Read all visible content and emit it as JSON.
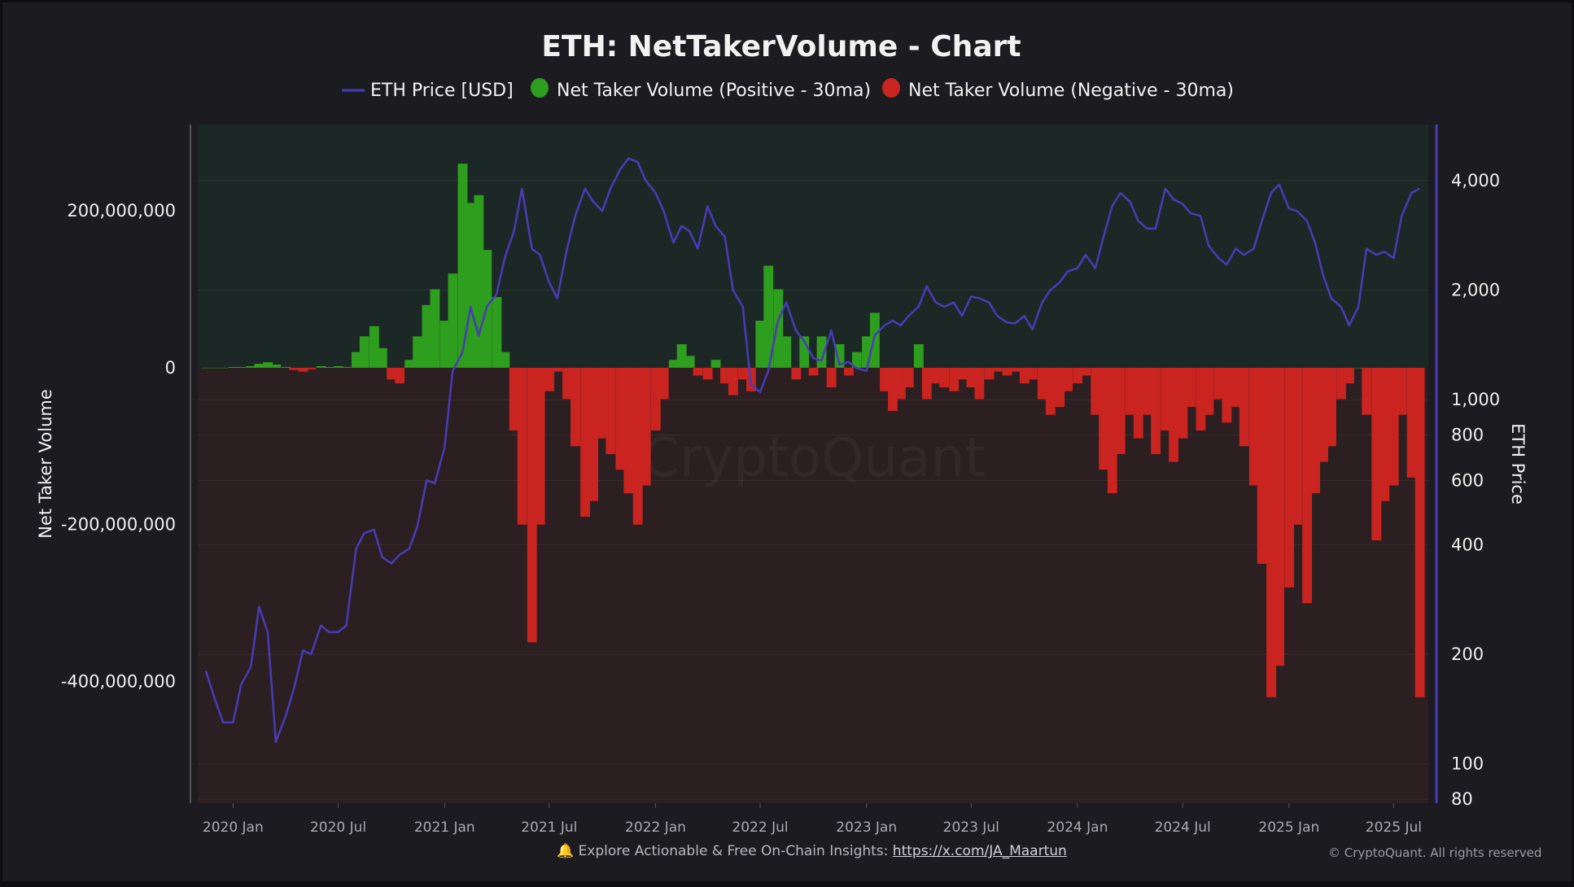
{
  "chart_data": {
    "type": "bar",
    "title": "ETH: NetTakerVolume - Chart",
    "legend": {
      "placement": "top-center",
      "entries": [
        {
          "label": "ETH Price [USD]",
          "color": "#4a3bb8",
          "marker": "line"
        },
        {
          "label": "Net Taker Volume (Positive - 30ma)",
          "color": "#2e9e1e",
          "marker": "circle"
        },
        {
          "label": "Net Taker Volume (Negative - 30ma)",
          "color": "#c9241f",
          "marker": "circle"
        }
      ]
    },
    "ylabel": "Net Taker Volume",
    "y2label": "ETH Price",
    "ylim": [
      -555000000,
      310000000
    ],
    "y2lim": [
      78,
      5700
    ],
    "y2scale": "log",
    "xlim": [
      "2019-11-01",
      "2025-08-30"
    ],
    "yticks": [
      "200,000,000",
      "0",
      "-200,000,000",
      "-400,000,000"
    ],
    "ytick_values": [
      200000000,
      0,
      -200000000,
      -400000000
    ],
    "y2ticks": [
      "4,000",
      "2,000",
      "1,000",
      "800",
      "600",
      "400",
      "200",
      "100",
      "80"
    ],
    "y2tick_values": [
      4000,
      2000,
      1000,
      800,
      600,
      400,
      200,
      100,
      80
    ],
    "xticks": [
      "2020 Jan",
      "2020 Jul",
      "2021 Jan",
      "2021 Jul",
      "2022 Jan",
      "2022 Jul",
      "2023 Jan",
      "2023 Jul",
      "2024 Jan",
      "2024 Jul",
      "2025 Jan",
      "2025 Jul"
    ],
    "xtick_values": [
      "2020-01-01",
      "2020-07-01",
      "2021-01-01",
      "2021-07-01",
      "2022-01-01",
      "2022-07-01",
      "2023-01-01",
      "2023-07-01",
      "2024-01-01",
      "2024-07-01",
      "2025-01-01",
      "2025-07-01"
    ],
    "grid": true,
    "watermark": "CryptoQuant",
    "colors": {
      "positive": "#2e9e1e",
      "negative": "#c9241f",
      "price": "#4a3bb8",
      "pos_bg": "#1c2825",
      "neg_bg": "#2b1f21"
    },
    "x": [
      "2019-11-15",
      "2019-12-01",
      "2019-12-15",
      "2020-01-01",
      "2020-01-15",
      "2020-02-01",
      "2020-02-15",
      "2020-03-01",
      "2020-03-15",
      "2020-04-01",
      "2020-04-15",
      "2020-05-01",
      "2020-05-15",
      "2020-06-01",
      "2020-06-15",
      "2020-07-01",
      "2020-07-15",
      "2020-08-01",
      "2020-08-15",
      "2020-09-01",
      "2020-09-15",
      "2020-10-01",
      "2020-10-15",
      "2020-11-01",
      "2020-11-15",
      "2020-12-01",
      "2020-12-15",
      "2021-01-01",
      "2021-01-15",
      "2021-02-01",
      "2021-02-15",
      "2021-03-01",
      "2021-03-15",
      "2021-04-01",
      "2021-04-15",
      "2021-05-01",
      "2021-05-15",
      "2021-06-01",
      "2021-06-15",
      "2021-07-01",
      "2021-07-15",
      "2021-08-01",
      "2021-08-15",
      "2021-09-01",
      "2021-09-15",
      "2021-10-01",
      "2021-10-15",
      "2021-11-01",
      "2021-11-15",
      "2021-12-01",
      "2021-12-15",
      "2022-01-01",
      "2022-01-15",
      "2022-02-01",
      "2022-02-15",
      "2022-03-01",
      "2022-03-15",
      "2022-04-01",
      "2022-04-15",
      "2022-05-01",
      "2022-05-15",
      "2022-06-01",
      "2022-06-15",
      "2022-07-01",
      "2022-07-15",
      "2022-08-01",
      "2022-08-15",
      "2022-09-01",
      "2022-09-15",
      "2022-10-01",
      "2022-10-15",
      "2022-11-01",
      "2022-11-15",
      "2022-12-01",
      "2022-12-15",
      "2023-01-01",
      "2023-01-15",
      "2023-02-01",
      "2023-02-15",
      "2023-03-01",
      "2023-03-15",
      "2023-04-01",
      "2023-04-15",
      "2023-05-01",
      "2023-05-15",
      "2023-06-01",
      "2023-06-15",
      "2023-07-01",
      "2023-07-15",
      "2023-08-01",
      "2023-08-15",
      "2023-09-01",
      "2023-09-15",
      "2023-10-01",
      "2023-10-15",
      "2023-11-01",
      "2023-11-15",
      "2023-12-01",
      "2023-12-15",
      "2024-01-01",
      "2024-01-15",
      "2024-02-01",
      "2024-02-15",
      "2024-03-01",
      "2024-03-15",
      "2024-04-01",
      "2024-04-15",
      "2024-05-01",
      "2024-05-15",
      "2024-06-01",
      "2024-06-15",
      "2024-07-01",
      "2024-07-15",
      "2024-08-01",
      "2024-08-15",
      "2024-09-01",
      "2024-09-15",
      "2024-10-01",
      "2024-10-15",
      "2024-11-01",
      "2024-11-15",
      "2024-12-01",
      "2024-12-15",
      "2025-01-01",
      "2025-01-15",
      "2025-02-01",
      "2025-02-15",
      "2025-03-01",
      "2025-03-15",
      "2025-04-01",
      "2025-04-15",
      "2025-05-01",
      "2025-05-15",
      "2025-06-01",
      "2025-06-15",
      "2025-07-01",
      "2025-07-15",
      "2025-08-01",
      "2025-08-15"
    ],
    "series": [
      {
        "name": "ETH Price [USD]",
        "axis": "right",
        "kind": "line",
        "values": [
          180,
          150,
          130,
          130,
          165,
          185,
          270,
          230,
          115,
          135,
          160,
          205,
          200,
          240,
          230,
          230,
          240,
          390,
          430,
          440,
          370,
          355,
          375,
          390,
          450,
          600,
          590,
          740,
          1200,
          1350,
          1800,
          1500,
          1800,
          1950,
          2450,
          2900,
          3800,
          2600,
          2500,
          2100,
          1900,
          2600,
          3200,
          3800,
          3500,
          3300,
          3800,
          4300,
          4600,
          4500,
          4000,
          3700,
          3300,
          2700,
          3000,
          2900,
          2600,
          3400,
          3000,
          2800,
          2000,
          1800,
          1100,
          1050,
          1200,
          1650,
          1850,
          1550,
          1450,
          1300,
          1280,
          1550,
          1250,
          1270,
          1220,
          1200,
          1500,
          1600,
          1650,
          1600,
          1700,
          1800,
          2050,
          1850,
          1800,
          1850,
          1700,
          1920,
          1900,
          1850,
          1700,
          1630,
          1620,
          1700,
          1560,
          1850,
          2000,
          2100,
          2250,
          2300,
          2500,
          2300,
          2800,
          3400,
          3700,
          3500,
          3100,
          2950,
          2950,
          3800,
          3550,
          3450,
          3250,
          3200,
          2650,
          2450,
          2350,
          2600,
          2500,
          2600,
          3100,
          3700,
          3900,
          3350,
          3300,
          3100,
          2700,
          2200,
          1900,
          1800,
          1600,
          1800,
          2600,
          2500,
          2550,
          2450,
          3200,
          3700,
          3800
        ]
      },
      {
        "name": "Net Taker Volume",
        "axis": "left",
        "kind": "bar",
        "values": [
          0,
          0,
          0,
          1000000,
          1000000,
          2000000,
          5000000,
          7000000,
          4000000,
          1000000,
          -3000000,
          -5000000,
          -2000000,
          2000000,
          1000000,
          2000000,
          1000000,
          20000000,
          40000000,
          53000000,
          25000000,
          -15000000,
          -20000000,
          10000000,
          40000000,
          80000000,
          100000000,
          60000000,
          120000000,
          260000000,
          210000000,
          220000000,
          150000000,
          90000000,
          20000000,
          -80000000,
          -200000000,
          -350000000,
          -200000000,
          -30000000,
          -5000000,
          -40000000,
          -100000000,
          -190000000,
          -170000000,
          -90000000,
          -110000000,
          -130000000,
          -160000000,
          -200000000,
          -150000000,
          -80000000,
          -40000000,
          10000000,
          30000000,
          15000000,
          -10000000,
          -15000000,
          10000000,
          -20000000,
          -35000000,
          -15000000,
          -30000000,
          60000000,
          130000000,
          100000000,
          40000000,
          -15000000,
          40000000,
          -10000000,
          40000000,
          -25000000,
          30000000,
          -10000000,
          20000000,
          40000000,
          70000000,
          -30000000,
          -55000000,
          -40000000,
          -25000000,
          30000000,
          -40000000,
          -20000000,
          -25000000,
          -30000000,
          -15000000,
          -25000000,
          -40000000,
          -15000000,
          -5000000,
          -10000000,
          -5000000,
          -20000000,
          -15000000,
          -40000000,
          -60000000,
          -50000000,
          -30000000,
          -20000000,
          -10000000,
          -60000000,
          -130000000,
          -160000000,
          -110000000,
          -60000000,
          -90000000,
          -60000000,
          -110000000,
          -80000000,
          -120000000,
          -90000000,
          -50000000,
          -80000000,
          -60000000,
          -40000000,
          -70000000,
          -50000000,
          -100000000,
          -150000000,
          -250000000,
          -420000000,
          -380000000,
          -280000000,
          -200000000,
          -300000000,
          -160000000,
          -120000000,
          -100000000,
          -40000000,
          -20000000,
          0,
          -60000000,
          -220000000,
          -170000000,
          -150000000,
          -60000000,
          -140000000,
          -420000000
        ]
      }
    ]
  },
  "footer": {
    "bell_icon": "bell-icon",
    "text": "Explore Actionable & Free On-Chain Insights:",
    "link": "https://x.com/JA_Maartun",
    "copyright": "© CryptoQuant. All rights reserved"
  }
}
